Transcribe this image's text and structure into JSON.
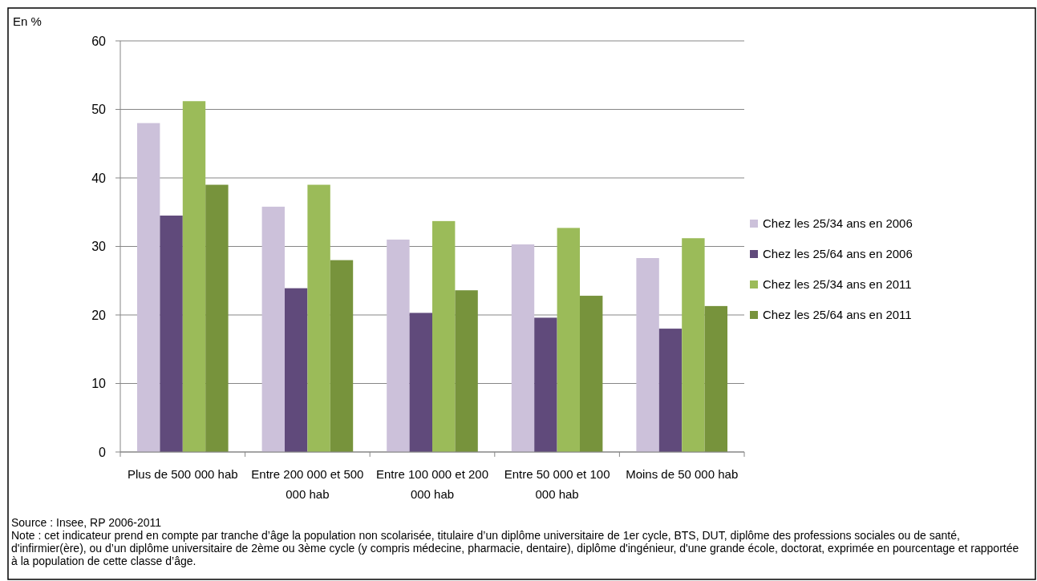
{
  "chart_data": {
    "type": "bar",
    "ylabel": "En %",
    "categories": [
      "Plus de 500 000 hab",
      "Entre 200 000 et 500 000 hab",
      "Entre 100 000 et 200 000 hab",
      "Entre 50 000 et 100 000 hab",
      "Moins de 50 000 hab"
    ],
    "series": [
      {
        "name": "Chez les 25/34 ans en 2006",
        "color": "#ccc1da",
        "values": [
          48.0,
          35.8,
          31.0,
          30.3,
          28.3
        ]
      },
      {
        "name": "Chez les 25/64 ans en 2006",
        "color": "#604a7b",
        "values": [
          34.5,
          23.9,
          20.3,
          19.6,
          18.0
        ]
      },
      {
        "name": "Chez les 25/34 ans en 2011",
        "color": "#9bbb59",
        "values": [
          51.2,
          39.0,
          33.7,
          32.7,
          31.2
        ]
      },
      {
        "name": "Chez les 25/64 ans en 2011",
        "color": "#77933c",
        "values": [
          39.0,
          28.0,
          23.6,
          22.8,
          21.3
        ]
      }
    ],
    "ylim": [
      0,
      60
    ],
    "yticks": [
      0,
      10,
      20,
      30,
      40,
      50,
      60
    ],
    "grid": "y",
    "legend": "right",
    "annotations": [
      "Source : Insee, RP 2006-2011",
      "Note : cet indicateur prend en compte par tranche d’âge la population non scolarisée, titulaire d’un diplôme universitaire de 1er cycle, BTS, DUT, diplôme des professions sociales ou de santé, d'infirmier(ère), ou d’un diplôme universitaire de 2ème ou 3ème cycle (y compris médecine, pharmacie, dentaire), diplôme d'ingénieur, d'une grande école, doctorat, exprimée en pourcentage et rapportée à la population de cette classe d’âge."
    ]
  }
}
